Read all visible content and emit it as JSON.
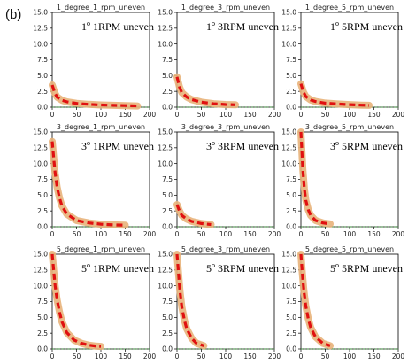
{
  "figure": {
    "panel_label": "(b)"
  },
  "colors": {
    "curve_fill": "#e8b27a",
    "curve_line": "#e01010",
    "baseline": "#3aa83a",
    "axes": "#000000"
  },
  "chart_data": [
    {
      "type": "line",
      "title": "1_degree_1_rpm_uneven",
      "annotation": {
        "deg": "1",
        "text": "1RPM uneven"
      },
      "xlim": [
        0,
        200
      ],
      "ylim": [
        0,
        15
      ],
      "xticks": [
        0,
        50,
        100,
        150,
        200
      ],
      "yticks": [
        0.0,
        2.5,
        5.0,
        7.5,
        10.0,
        12.5,
        15.0
      ],
      "series": [
        {
          "x": [
            0,
            5,
            10,
            20,
            30,
            50,
            75,
            100,
            125,
            150,
            175
          ],
          "y": [
            3.5,
            2.3,
            1.6,
            1.1,
            0.85,
            0.6,
            0.45,
            0.35,
            0.3,
            0.25,
            0.2
          ]
        }
      ],
      "baseline": 0
    },
    {
      "type": "line",
      "title": "1_degree_3_rpm_uneven",
      "annotation": {
        "deg": "1",
        "text": "3RPM uneven"
      },
      "xlim": [
        0,
        200
      ],
      "ylim": [
        0,
        15
      ],
      "xticks": [
        0,
        50,
        100,
        150,
        200
      ],
      "yticks": [
        0.0,
        2.5,
        5.0,
        7.5,
        10.0,
        12.5,
        15.0
      ],
      "series": [
        {
          "x": [
            0,
            5,
            10,
            20,
            30,
            50,
            75,
            100,
            120
          ],
          "y": [
            4.8,
            3.2,
            2.3,
            1.6,
            1.2,
            0.8,
            0.55,
            0.42,
            0.38
          ]
        }
      ],
      "baseline": 0
    },
    {
      "type": "line",
      "title": "1_degree_5_rpm_uneven",
      "annotation": {
        "deg": "1",
        "text": "5RPM uneven"
      },
      "xlim": [
        0,
        200
      ],
      "ylim": [
        0,
        15
      ],
      "xticks": [
        0,
        50,
        100,
        150,
        200
      ],
      "yticks": [
        0.0,
        2.5,
        5.0,
        7.5,
        10.0,
        12.5,
        15.0
      ],
      "series": [
        {
          "x": [
            0,
            5,
            10,
            20,
            30,
            50,
            75,
            100,
            125,
            140
          ],
          "y": [
            3.7,
            2.4,
            1.7,
            1.15,
            0.9,
            0.65,
            0.5,
            0.4,
            0.32,
            0.3
          ]
        }
      ],
      "baseline": 0
    },
    {
      "type": "line",
      "title": "3_degree_1_rpm_uneven",
      "annotation": {
        "deg": "3",
        "text": "1RPM uneven"
      },
      "xlim": [
        0,
        200
      ],
      "ylim": [
        0,
        15
      ],
      "xticks": [
        0,
        50,
        100,
        150,
        200
      ],
      "yticks": [
        0.0,
        2.5,
        5.0,
        7.5,
        10.0,
        12.5,
        15.0
      ],
      "series": [
        {
          "x": [
            0,
            3,
            6,
            10,
            15,
            20,
            30,
            50,
            75,
            100,
            125,
            150
          ],
          "y": [
            13.5,
            11,
            8.5,
            6.3,
            4.5,
            3.3,
            2.0,
            1.0,
            0.6,
            0.4,
            0.3,
            0.25
          ]
        }
      ],
      "baseline": 0
    },
    {
      "type": "line",
      "title": "3_degree_3_rpm_uneven",
      "annotation": {
        "deg": "3",
        "text": "3RPM uneven"
      },
      "xlim": [
        0,
        200
      ],
      "ylim": [
        0,
        15
      ],
      "xticks": [
        0,
        50,
        100,
        150,
        200
      ],
      "yticks": [
        0.0,
        2.5,
        5.0,
        7.5,
        10.0,
        12.5,
        15.0
      ],
      "series": [
        {
          "x": [
            0,
            5,
            10,
            20,
            30,
            50,
            70
          ],
          "y": [
            3.5,
            2.5,
            1.8,
            1.2,
            0.85,
            0.5,
            0.35
          ]
        }
      ],
      "baseline": 0
    },
    {
      "type": "line",
      "title": "3_degree_5_rpm_uneven",
      "annotation": {
        "deg": "3",
        "text": "5RPM uneven"
      },
      "xlim": [
        0,
        200
      ],
      "ylim": [
        0,
        15
      ],
      "xticks": [
        0,
        50,
        100,
        150,
        200
      ],
      "yticks": [
        0.0,
        2.5,
        5.0,
        7.5,
        10.0,
        12.5,
        15.0
      ],
      "series": [
        {
          "x": [
            0,
            2,
            4,
            7,
            10,
            15,
            20,
            30,
            45,
            60
          ],
          "y": [
            15,
            12,
            9,
            6,
            4.2,
            2.7,
            1.8,
            1.0,
            0.6,
            0.45
          ]
        }
      ],
      "baseline": 0
    },
    {
      "type": "line",
      "title": "5_degree_1_rpm_uneven",
      "annotation": {
        "deg": "5",
        "text": "1RPM uneven"
      },
      "xlim": [
        0,
        200
      ],
      "ylim": [
        0,
        15
      ],
      "xticks": [
        0,
        50,
        100,
        150,
        200
      ],
      "yticks": [
        0.0,
        2.5,
        5.0,
        7.5,
        10.0,
        12.5,
        15.0
      ],
      "series": [
        {
          "x": [
            0,
            3,
            6,
            10,
            15,
            20,
            30,
            45,
            60,
            75,
            90,
            100
          ],
          "y": [
            15,
            12.5,
            10,
            7.8,
            5.8,
            4.3,
            2.6,
            1.4,
            0.9,
            0.6,
            0.45,
            0.4
          ]
        }
      ],
      "baseline": 0
    },
    {
      "type": "line",
      "title": "5_degree_3_rpm_uneven",
      "annotation": {
        "deg": "5",
        "text": "3RPM uneven"
      },
      "xlim": [
        0,
        200
      ],
      "ylim": [
        0,
        15
      ],
      "xticks": [
        0,
        50,
        100,
        150,
        200
      ],
      "yticks": [
        0.0,
        2.5,
        5.0,
        7.5,
        10.0,
        12.5,
        15.0
      ],
      "series": [
        {
          "x": [
            0,
            3,
            6,
            10,
            15,
            20,
            30,
            40,
            55
          ],
          "y": [
            15,
            12,
            9.2,
            6.6,
            4.6,
            3.2,
            1.7,
            0.9,
            0.5
          ]
        }
      ],
      "baseline": 0
    },
    {
      "type": "line",
      "title": "5_degree_5_rpm_uneven",
      "annotation": {
        "deg": "5",
        "text": "5RPM uneven"
      },
      "xlim": [
        0,
        200
      ],
      "ylim": [
        0,
        15
      ],
      "xticks": [
        0,
        50,
        100,
        150,
        200
      ],
      "yticks": [
        0.0,
        2.5,
        5.0,
        7.5,
        10.0,
        12.5,
        15.0
      ],
      "series": [
        {
          "x": [
            0,
            3,
            6,
            10,
            15,
            20,
            30,
            45,
            60
          ],
          "y": [
            15,
            12,
            9.3,
            6.8,
            4.8,
            3.4,
            1.9,
            0.9,
            0.5
          ]
        }
      ],
      "baseline": 0
    }
  ]
}
